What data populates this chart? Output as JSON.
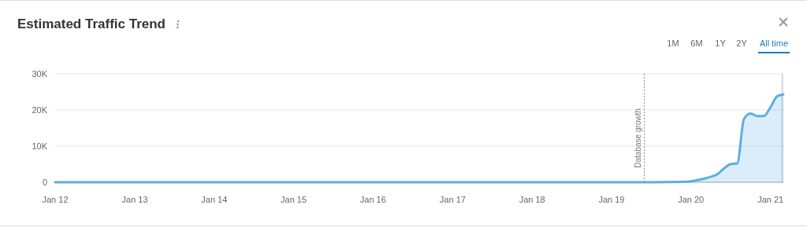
{
  "chart_data": {
    "type": "area",
    "title": "Estimated Traffic Trend",
    "annotations": [
      "1M",
      "6M",
      "1Y",
      "2Y",
      "All time"
    ],
    "x": [
      "2012-01",
      "2013-01",
      "2014-01",
      "2015-01",
      "2016-01",
      "2017-01",
      "2018-01",
      "2019-01",
      "2019-06",
      "2019-12",
      "2020-02",
      "2020-04",
      "2020-05",
      "2020-06",
      "2020-07",
      "2020-08",
      "2020-09",
      "2020-10",
      "2020-11",
      "2020-12",
      "2021-01",
      "2021-02",
      "2021-03"
    ],
    "series": [
      {
        "color": "#5aaee8",
        "values": [
          0,
          0,
          0,
          0,
          0,
          0,
          0,
          0,
          0,
          100,
          600,
          1500,
          2200,
          3800,
          5000,
          5200,
          17500,
          19000,
          18300,
          18300,
          20800,
          23800,
          24300
        ]
      }
    ],
    "xlim": [
      "2012-01",
      "2021-03"
    ],
    "xticks": [
      {
        "value": "2012-01",
        "label": "Jan 12"
      },
      {
        "value": "2013-01",
        "label": "Jan 13"
      },
      {
        "value": "2014-01",
        "label": "Jan 14"
      },
      {
        "value": "2015-01",
        "label": "Jan 15"
      },
      {
        "value": "2016-01",
        "label": "Jan 16"
      },
      {
        "value": "2017-01",
        "label": "Jan 17"
      },
      {
        "value": "2018-01",
        "label": "Jan 18"
      },
      {
        "value": "2019-01",
        "label": "Jan 19"
      },
      {
        "value": "2020-01",
        "label": "Jan 20"
      },
      {
        "value": "2021-01",
        "label": "Jan 21"
      }
    ],
    "ylim": [
      0,
      30000
    ],
    "yticks": [
      0,
      {
        "value": 10000,
        "label": "10K"
      },
      {
        "value": 20000,
        "label": "20K"
      },
      {
        "value": 30000,
        "label": "30K"
      }
    ],
    "grid": "y",
    "ref_lines": [
      {
        "axis": "x",
        "value": "2019-06",
        "label": "Database growth",
        "line_style": "dotted",
        "color": "#888888"
      }
    ],
    "bands": [
      {
        "axis": "x",
        "from": "2021-02-20",
        "to": "2021-03",
        "color": "#c5d2dc"
      }
    ]
  }
}
